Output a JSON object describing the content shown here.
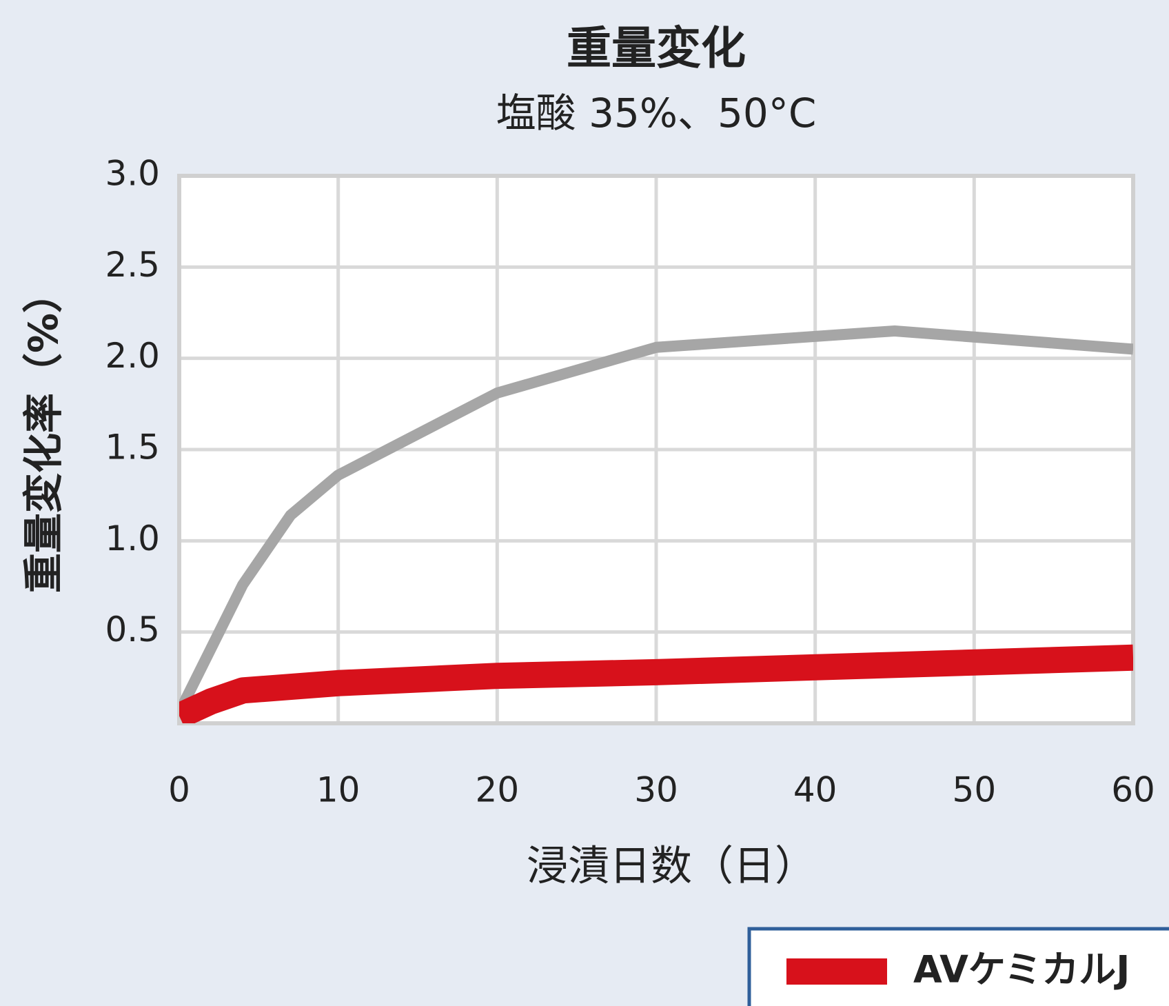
{
  "chart_data": {
    "type": "line",
    "title": "重量変化",
    "subtitle": "塩酸 35%、50°C",
    "xlabel": "浸漬日数（日）",
    "ylabel": "重量変化率（%）",
    "xlim": [
      0,
      60
    ],
    "xticks": [
      0,
      10,
      20,
      30,
      40,
      50,
      60
    ],
    "ylim": [
      0,
      3
    ],
    "yticks": [
      0.5,
      {
        "value": 1,
        "label": "1.0"
      },
      1.5,
      {
        "value": 2,
        "label": "2.0"
      },
      2.5,
      {
        "value": 3,
        "label": "3.0"
      }
    ],
    "grid": true,
    "series": [
      {
        "color": "#a6a6a6",
        "x": [
          0,
          4,
          7,
          10,
          20,
          30,
          45,
          60
        ],
        "values": [
          0.06,
          0.76,
          1.14,
          1.36,
          1.81,
          2.06,
          2.15,
          2.05
        ]
      },
      {
        "name": "AVケミカルJ",
        "color": "#d7111b",
        "x": [
          0,
          2,
          4,
          10,
          20,
          30,
          45,
          60
        ],
        "values": [
          0.04,
          0.12,
          0.18,
          0.22,
          0.26,
          0.28,
          0.32,
          0.36
        ]
      }
    ]
  }
}
